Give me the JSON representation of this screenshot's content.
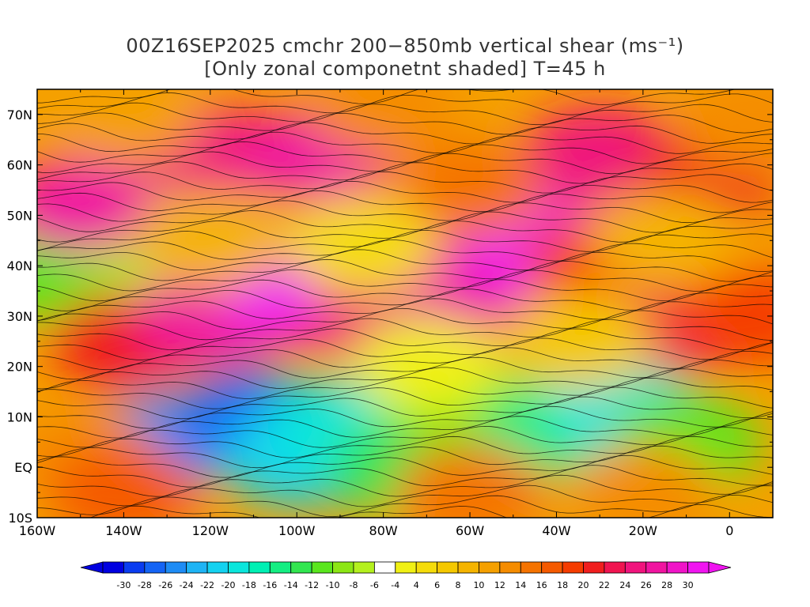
{
  "title": {
    "line1": "00Z16SEP2025 cmchr 200−850mb vertical shear (ms⁻¹)",
    "line2": "[Only zonal componetnt shaded] T=45 h"
  },
  "axes": {
    "lon_ticks": [
      "160W",
      "140W",
      "120W",
      "100W",
      "80W",
      "60W",
      "40W",
      "20W",
      "0"
    ],
    "lat_ticks": [
      "10S",
      "EQ",
      "10N",
      "20N",
      "30N",
      "40N",
      "50N",
      "60N",
      "70N"
    ],
    "lon_range": [
      -160,
      10
    ],
    "lat_range": [
      -10,
      75
    ]
  },
  "colorbar": {
    "labels": [
      "-30",
      "-28",
      "-26",
      "-24",
      "-22",
      "-20",
      "-18",
      "-16",
      "-14",
      "-12",
      "-10",
      "-8",
      "-6",
      "-4",
      "4",
      "6",
      "8",
      "10",
      "12",
      "14",
      "16",
      "18",
      "20",
      "22",
      "24",
      "26",
      "28",
      "30"
    ],
    "colors": [
      "#0000e0",
      "#0a3cf0",
      "#1464f5",
      "#1e8cf5",
      "#1eb4f5",
      "#14d2f0",
      "#0ae6dc",
      "#00f0b4",
      "#14ee82",
      "#32e650",
      "#5ae61e",
      "#8ce614",
      "#b4f01e",
      "#ffffff",
      "#f0f014",
      "#f5dc0a",
      "#f5c800",
      "#f5b400",
      "#f5a000",
      "#f58c00",
      "#f57300",
      "#f55a00",
      "#f53c00",
      "#f01e1e",
      "#f01450",
      "#f0147d",
      "#f014a0",
      "#f014c8",
      "#f014f0"
    ],
    "min_color": "#0000e0",
    "max_color": "#f014f0"
  },
  "shear_field": {
    "units": "ms-1",
    "regions": [
      {
        "lon": -130,
        "lat": 5,
        "value": -24
      },
      {
        "lon": -110,
        "lat": 10,
        "value": -26
      },
      {
        "lon": -100,
        "lat": 2,
        "value": -20
      },
      {
        "lon": -90,
        "lat": 8,
        "value": -18
      },
      {
        "lon": -75,
        "lat": 0,
        "value": -12
      },
      {
        "lon": -60,
        "lat": 10,
        "value": -10
      },
      {
        "lon": -40,
        "lat": 8,
        "value": -14
      },
      {
        "lon": -25,
        "lat": 12,
        "value": -18
      },
      {
        "lon": -10,
        "lat": 5,
        "value": -10
      },
      {
        "lon": -155,
        "lat": 38,
        "value": -10
      },
      {
        "lon": -135,
        "lat": 45,
        "value": -6
      },
      {
        "lon": -150,
        "lat": 2,
        "value": 14
      },
      {
        "lon": -140,
        "lat": -5,
        "value": 18
      },
      {
        "lon": -60,
        "lat": -5,
        "value": 16
      },
      {
        "lon": -20,
        "lat": -5,
        "value": 14
      },
      {
        "lon": -140,
        "lat": 25,
        "value": 22
      },
      {
        "lon": -120,
        "lat": 30,
        "value": 28
      },
      {
        "lon": -100,
        "lat": 34,
        "value": 30
      },
      {
        "lon": -80,
        "lat": 30,
        "value": 26
      },
      {
        "lon": -60,
        "lat": 36,
        "value": 28
      },
      {
        "lon": -45,
        "lat": 44,
        "value": 30
      },
      {
        "lon": -30,
        "lat": 40,
        "value": 20
      },
      {
        "lon": -10,
        "lat": 28,
        "value": 24
      },
      {
        "lon": 5,
        "lat": 30,
        "value": 20
      },
      {
        "lon": -150,
        "lat": 52,
        "value": 28
      },
      {
        "lon": -120,
        "lat": 62,
        "value": 26
      },
      {
        "lon": -95,
        "lat": 62,
        "value": 28
      },
      {
        "lon": -60,
        "lat": 55,
        "value": 16
      },
      {
        "lon": -30,
        "lat": 62,
        "value": 26
      },
      {
        "lon": -5,
        "lat": 58,
        "value": 22
      },
      {
        "lon": 5,
        "lat": 68,
        "value": 14
      },
      {
        "lon": -140,
        "lat": 70,
        "value": 12
      },
      {
        "lon": -80,
        "lat": 72,
        "value": 14
      },
      {
        "lon": -120,
        "lat": 45,
        "value": 10
      },
      {
        "lon": -85,
        "lat": 44,
        "value": 6
      },
      {
        "lon": -70,
        "lat": 20,
        "value": 4
      },
      {
        "lon": -35,
        "lat": 25,
        "value": 8
      },
      {
        "lon": -15,
        "lat": 45,
        "value": 10
      }
    ]
  }
}
